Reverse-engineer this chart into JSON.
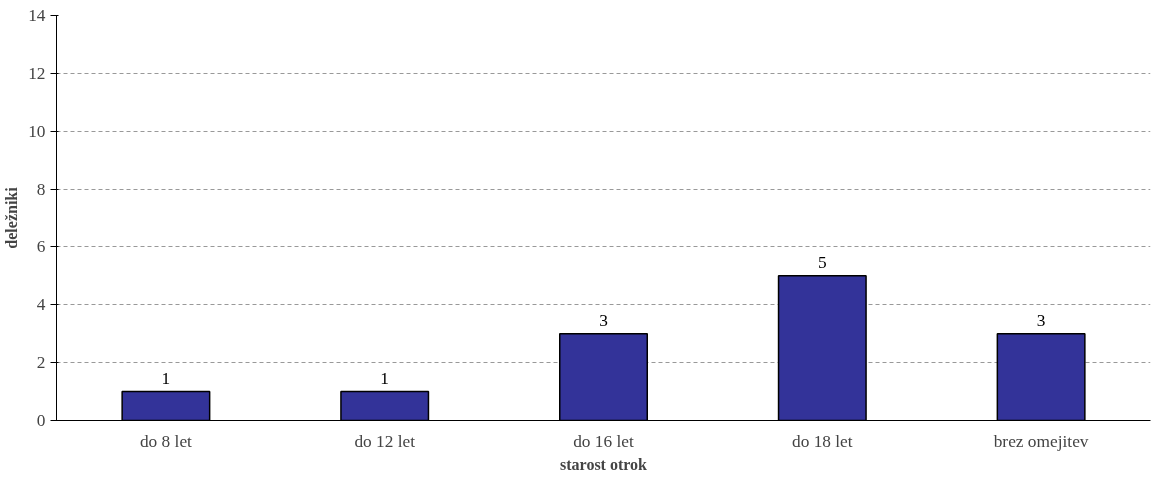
{
  "chart_data": {
    "type": "bar",
    "xlabel": "starost otrok",
    "ylabel": "deležniki",
    "categories": [
      "do 8 let",
      "do 12 let",
      "do 16 let",
      "do 18 let",
      "brez omejitev"
    ],
    "values": [
      1,
      1,
      3,
      5,
      3
    ],
    "color": "#333399",
    "ylim": [
      0,
      14
    ],
    "yticks": [
      0,
      2,
      4,
      6,
      8,
      10,
      12,
      14
    ],
    "grid": "y",
    "data_labels": true
  }
}
